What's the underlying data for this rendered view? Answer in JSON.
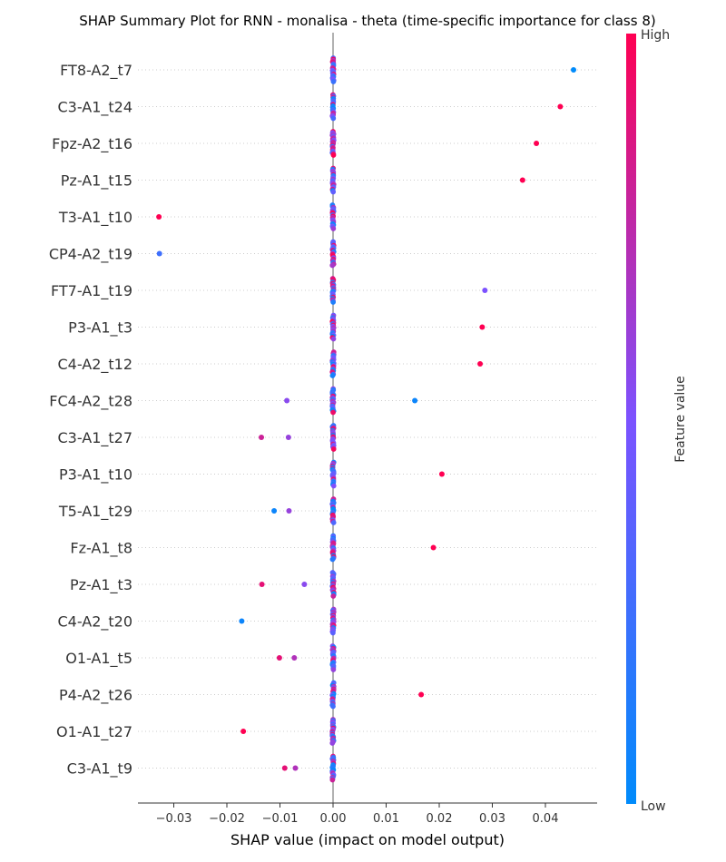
{
  "chart_data": {
    "type": "scatter",
    "title": "SHAP Summary Plot for RNN - monalisa - theta (time-specific importance for class 8)",
    "xlabel": "SHAP value (impact on model output)",
    "xlim": [
      -0.0365,
      0.049
    ],
    "xticks": [
      -0.03,
      -0.02,
      -0.01,
      0.0,
      0.01,
      0.02,
      0.03,
      0.04
    ],
    "xtick_labels": [
      "−0.03",
      "−0.02",
      "−0.01",
      "0.00",
      "0.01",
      "0.02",
      "0.03",
      "0.04"
    ],
    "colorbar": {
      "label": "Feature value",
      "high_label": "High",
      "low_label": "Low",
      "low_color": "#008bfb",
      "mid_color": "#7c52ff",
      "high_color": "#ff0052"
    },
    "zero_line_color": "#999999",
    "grid": false,
    "features": [
      {
        "name": "FT8-A2_t7",
        "outliers": [
          {
            "x": 0.0453,
            "v": 0.0
          }
        ]
      },
      {
        "name": "C3-A1_t24",
        "outliers": [
          {
            "x": 0.0428,
            "v": 1.0
          }
        ]
      },
      {
        "name": "Fpz-A2_t16",
        "outliers": [
          {
            "x": 0.0383,
            "v": 1.0
          }
        ]
      },
      {
        "name": "Pz-A1_t15",
        "outliers": [
          {
            "x": 0.0357,
            "v": 1.0
          }
        ]
      },
      {
        "name": "T3-A1_t10",
        "outliers": [
          {
            "x": -0.0328,
            "v": 1.0
          }
        ]
      },
      {
        "name": "CP4-A2_t19",
        "outliers": [
          {
            "x": -0.0327,
            "v": 0.25
          }
        ]
      },
      {
        "name": "FT7-A1_t19",
        "outliers": [
          {
            "x": 0.0286,
            "v": 0.5
          }
        ]
      },
      {
        "name": "P3-A1_t3",
        "outliers": [
          {
            "x": 0.0281,
            "v": 1.0
          }
        ]
      },
      {
        "name": "C4-A2_t12",
        "outliers": [
          {
            "x": 0.0277,
            "v": 1.0
          }
        ]
      },
      {
        "name": "FC4-A2_t28",
        "outliers": [
          {
            "x": -0.0087,
            "v": 0.55
          },
          {
            "x": 0.0154,
            "v": 0.05
          }
        ]
      },
      {
        "name": "C3-A1_t27",
        "outliers": [
          {
            "x": -0.0135,
            "v": 0.8
          },
          {
            "x": -0.0084,
            "v": 0.6
          }
        ]
      },
      {
        "name": "P3-A1_t10",
        "outliers": [
          {
            "x": 0.0205,
            "v": 1.0
          }
        ]
      },
      {
        "name": "T5-A1_t29",
        "outliers": [
          {
            "x": -0.0111,
            "v": 0.05
          },
          {
            "x": -0.0083,
            "v": 0.6
          }
        ]
      },
      {
        "name": "Fz-A1_t8",
        "outliers": [
          {
            "x": 0.0189,
            "v": 1.0
          }
        ]
      },
      {
        "name": "Pz-A1_t3",
        "outliers": [
          {
            "x": -0.0134,
            "v": 0.9
          },
          {
            "x": -0.0054,
            "v": 0.55
          }
        ]
      },
      {
        "name": "C4-A2_t20",
        "outliers": [
          {
            "x": -0.0172,
            "v": 0.05
          }
        ]
      },
      {
        "name": "O1-A1_t5",
        "outliers": [
          {
            "x": -0.0101,
            "v": 0.9
          },
          {
            "x": -0.0073,
            "v": 0.7
          }
        ]
      },
      {
        "name": "P4-A2_t26",
        "outliers": [
          {
            "x": 0.0166,
            "v": 1.0
          }
        ]
      },
      {
        "name": "O1-A1_t27",
        "outliers": [
          {
            "x": -0.0169,
            "v": 1.0
          }
        ]
      },
      {
        "name": "C3-A1_t9",
        "outliers": [
          {
            "x": -0.0091,
            "v": 0.9
          },
          {
            "x": -0.0071,
            "v": 0.7
          }
        ]
      }
    ]
  }
}
